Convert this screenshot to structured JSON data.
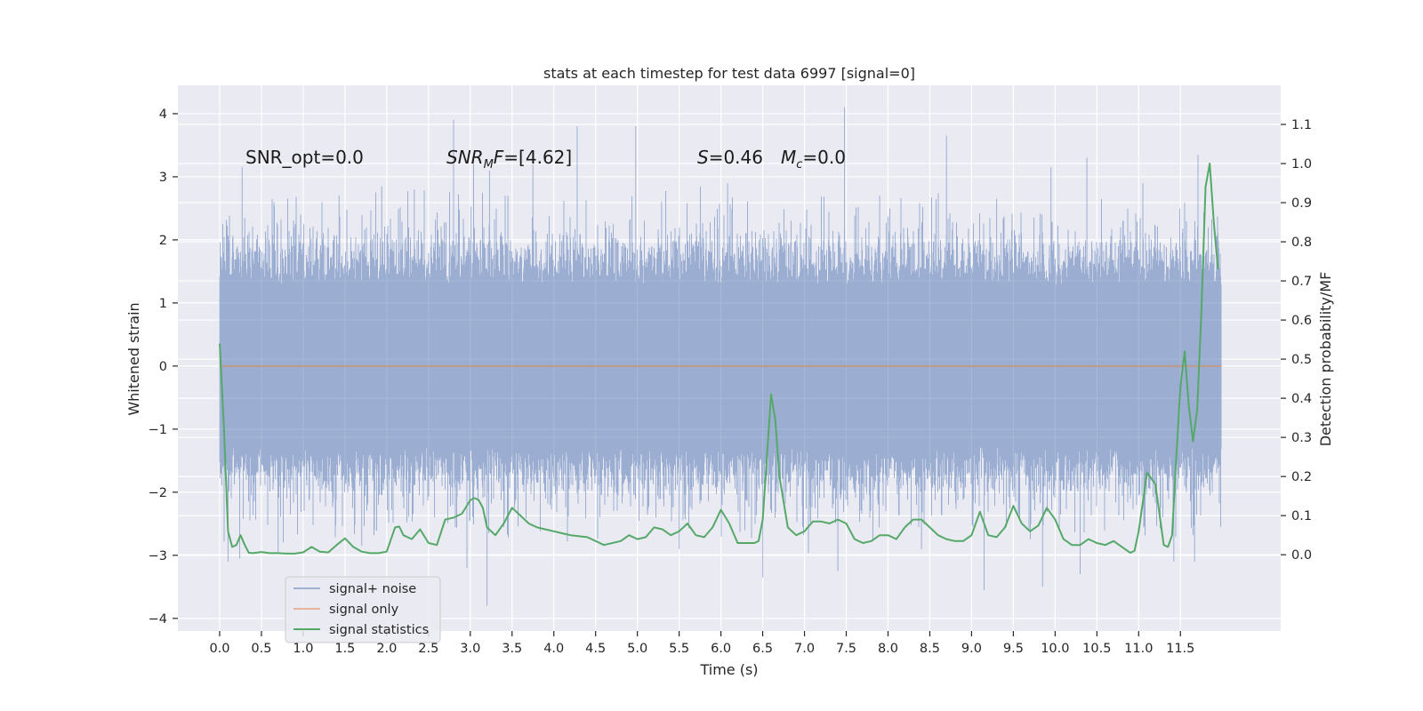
{
  "chart_data": {
    "type": "line",
    "title": "stats at each timestep for test data 6997 [signal=0]",
    "xlabel": "Time (s)",
    "ylabel": "Whitened strain",
    "y2label": "Detection probability/MF",
    "xlim": [
      -0.5,
      12.7
    ],
    "ylim": [
      -4.2,
      4.45
    ],
    "y2lim": [
      -0.195,
      1.2
    ],
    "x_ticks": [
      0.0,
      0.5,
      1.0,
      1.5,
      2.0,
      2.5,
      3.0,
      3.5,
      4.0,
      4.5,
      5.0,
      5.5,
      6.0,
      6.5,
      7.0,
      7.5,
      8.0,
      8.5,
      9.0,
      9.5,
      10.0,
      10.5,
      11.0,
      11.5
    ],
    "x_tick_labels": [
      "0.0",
      "0.5",
      "1.0",
      "1.5",
      "2.0",
      "2.5",
      "3.0",
      "3.5",
      "4.0",
      "4.5",
      "5.0",
      "5.5",
      "6.0",
      "6.5",
      "7.0",
      "7.5",
      "8.0",
      "8.5",
      "9.0",
      "9.5",
      "10.0",
      "10.5",
      "11.0",
      "11.5"
    ],
    "y_ticks": [
      4,
      3,
      2,
      1,
      0,
      -1,
      -2,
      -3,
      -4
    ],
    "y_tick_labels": [
      "4",
      "3",
      "2",
      "1",
      "0",
      "−1",
      "−2",
      "−3",
      "−4"
    ],
    "y2_ticks": [
      1.1,
      1.0,
      0.9,
      0.8,
      0.7,
      0.6,
      0.5,
      0.4,
      0.3,
      0.2,
      0.1,
      0.0
    ],
    "y2_tick_labels": [
      "1.1",
      "1.0",
      "0.9",
      "0.8",
      "0.7",
      "0.6",
      "0.5",
      "0.4",
      "0.3",
      "0.2",
      "0.1",
      "0.0"
    ],
    "grid": true,
    "legend_position": "lower-left",
    "annotations": {
      "snr_opt": "SNR_opt=0.0",
      "snr_mf_a": "SNR",
      "snr_mf_sub": "M",
      "snr_mf_b": "F",
      "snr_mf_c": "=[4.62]",
      "s_symbol": "S",
      "s_value": "=0.46",
      "mc_symbol": "M",
      "mc_sub": "c",
      "mc_value": "=0.0"
    },
    "series": [
      {
        "name": "signal+ noise",
        "color": "#4c72b0",
        "x_range": [
          0.0,
          11.99
        ],
        "typical_abs_amplitude": 1.4,
        "peaks": [
          [
            0.27,
            3.15
          ],
          [
            0.3,
            2.35
          ],
          [
            0.65,
            2.6
          ],
          [
            0.97,
            2.4
          ],
          [
            1.43,
            2.7
          ],
          [
            1.94,
            2.85
          ],
          [
            2.33,
            2.8
          ],
          [
            2.8,
            3.9
          ],
          [
            3.04,
            3.3
          ],
          [
            3.23,
            3.1
          ],
          [
            3.45,
            2.7
          ],
          [
            3.75,
            3.2
          ],
          [
            4.28,
            3.8
          ],
          [
            4.98,
            3.8
          ],
          [
            5.29,
            2.6
          ],
          [
            6.08,
            2.9
          ],
          [
            7.48,
            4.1
          ],
          [
            7.9,
            2.7
          ],
          [
            8.7,
            3.65
          ],
          [
            9.3,
            2.65
          ],
          [
            9.95,
            3.15
          ],
          [
            10.38,
            3.3
          ],
          [
            11.05,
            2.9
          ],
          [
            11.71,
            3.35
          ]
        ],
        "troughs": [
          [
            0.1,
            -3.1
          ],
          [
            0.24,
            -3.05
          ],
          [
            0.7,
            -2.95
          ],
          [
            1.7,
            -2.85
          ],
          [
            2.96,
            -3.2
          ],
          [
            3.2,
            -3.8
          ],
          [
            5.5,
            -2.9
          ],
          [
            6.5,
            -3.35
          ],
          [
            7.4,
            -3.25
          ],
          [
            8.4,
            -2.9
          ],
          [
            9.15,
            -3.55
          ],
          [
            9.85,
            -3.5
          ],
          [
            10.3,
            -3.3
          ],
          [
            11.42,
            -3.1
          ],
          [
            11.67,
            -3.1
          ]
        ]
      },
      {
        "name": "signal only",
        "color": "#dd8452",
        "x": [
          0.0,
          11.99
        ],
        "y": [
          0.0,
          0.0
        ]
      },
      {
        "name": "signal statistics",
        "color": "#55a868",
        "axis": "right",
        "x": [
          0.0,
          0.05,
          0.1,
          0.15,
          0.2,
          0.25,
          0.3,
          0.35,
          0.4,
          0.5,
          0.6,
          0.7,
          0.8,
          0.9,
          1.0,
          1.1,
          1.2,
          1.3,
          1.4,
          1.5,
          1.6,
          1.7,
          1.8,
          1.9,
          2.0,
          2.1,
          2.15,
          2.2,
          2.3,
          2.4,
          2.5,
          2.6,
          2.7,
          2.8,
          2.9,
          3.0,
          3.05,
          3.1,
          3.15,
          3.2,
          3.3,
          3.4,
          3.5,
          3.6,
          3.7,
          3.8,
          3.9,
          4.0,
          4.2,
          4.4,
          4.6,
          4.8,
          4.9,
          5.0,
          5.1,
          5.2,
          5.3,
          5.4,
          5.5,
          5.6,
          5.7,
          5.8,
          5.9,
          6.0,
          6.1,
          6.2,
          6.3,
          6.4,
          6.45,
          6.5,
          6.55,
          6.6,
          6.65,
          6.7,
          6.8,
          6.9,
          7.0,
          7.1,
          7.2,
          7.3,
          7.4,
          7.5,
          7.6,
          7.7,
          7.8,
          7.9,
          8.0,
          8.1,
          8.2,
          8.3,
          8.4,
          8.5,
          8.6,
          8.7,
          8.8,
          8.9,
          9.0,
          9.1,
          9.2,
          9.3,
          9.4,
          9.5,
          9.6,
          9.7,
          9.8,
          9.9,
          10.0,
          10.1,
          10.2,
          10.3,
          10.4,
          10.5,
          10.6,
          10.7,
          10.8,
          10.9,
          10.95,
          11.0,
          11.1,
          11.2,
          11.3,
          11.35,
          11.4,
          11.45,
          11.5,
          11.55,
          11.6,
          11.65,
          11.7,
          11.75,
          11.8,
          11.85,
          11.9,
          11.95
        ],
        "y": [
          0.54,
          0.33,
          0.06,
          0.02,
          0.025,
          0.05,
          0.025,
          0.005,
          0.004,
          0.007,
          0.004,
          0.004,
          0.003,
          0.003,
          0.006,
          0.02,
          0.008,
          0.006,
          0.025,
          0.042,
          0.02,
          0.008,
          0.004,
          0.004,
          0.008,
          0.07,
          0.072,
          0.05,
          0.04,
          0.065,
          0.03,
          0.025,
          0.09,
          0.095,
          0.105,
          0.14,
          0.145,
          0.14,
          0.12,
          0.07,
          0.05,
          0.08,
          0.12,
          0.1,
          0.08,
          0.07,
          0.065,
          0.06,
          0.05,
          0.045,
          0.025,
          0.035,
          0.05,
          0.04,
          0.045,
          0.07,
          0.065,
          0.05,
          0.06,
          0.08,
          0.05,
          0.045,
          0.07,
          0.115,
          0.08,
          0.03,
          0.03,
          0.03,
          0.035,
          0.09,
          0.25,
          0.41,
          0.345,
          0.2,
          0.07,
          0.05,
          0.06,
          0.085,
          0.085,
          0.08,
          0.09,
          0.08,
          0.04,
          0.03,
          0.035,
          0.05,
          0.05,
          0.04,
          0.07,
          0.09,
          0.09,
          0.07,
          0.05,
          0.04,
          0.035,
          0.035,
          0.05,
          0.11,
          0.05,
          0.045,
          0.07,
          0.125,
          0.08,
          0.06,
          0.075,
          0.12,
          0.09,
          0.04,
          0.025,
          0.025,
          0.04,
          0.03,
          0.025,
          0.035,
          0.02,
          0.005,
          0.01,
          0.06,
          0.21,
          0.18,
          0.025,
          0.02,
          0.05,
          0.25,
          0.43,
          0.52,
          0.38,
          0.29,
          0.37,
          0.62,
          0.94,
          1.0,
          0.85,
          0.73
        ]
      }
    ]
  }
}
